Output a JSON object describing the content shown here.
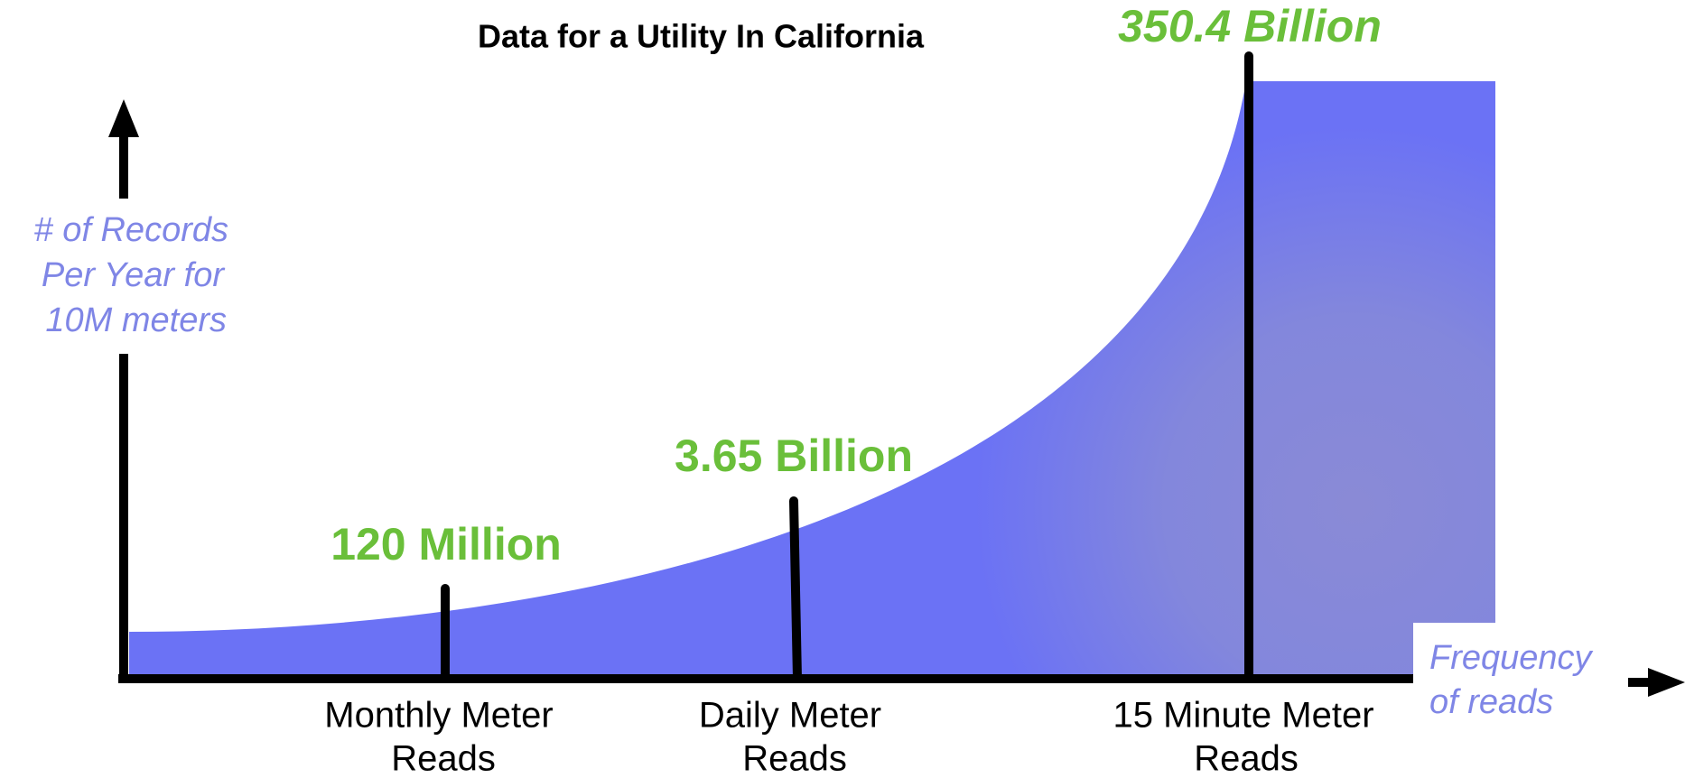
{
  "title": "Data for a Utility In California",
  "y_axis": {
    "label": [
      "# of Records",
      "Per Year for",
      "10M meters"
    ]
  },
  "x_axis": {
    "label": [
      "Frequency",
      "of reads"
    ]
  },
  "items": [
    {
      "category": [
        "Monthly Meter",
        "Reads"
      ],
      "value": "120 Million"
    },
    {
      "category": [
        "Daily Meter",
        "Reads"
      ],
      "value": "3.65 Billion"
    },
    {
      "category": [
        "15 Minute Meter",
        "Reads"
      ],
      "value": "350.4 Billion"
    }
  ]
}
